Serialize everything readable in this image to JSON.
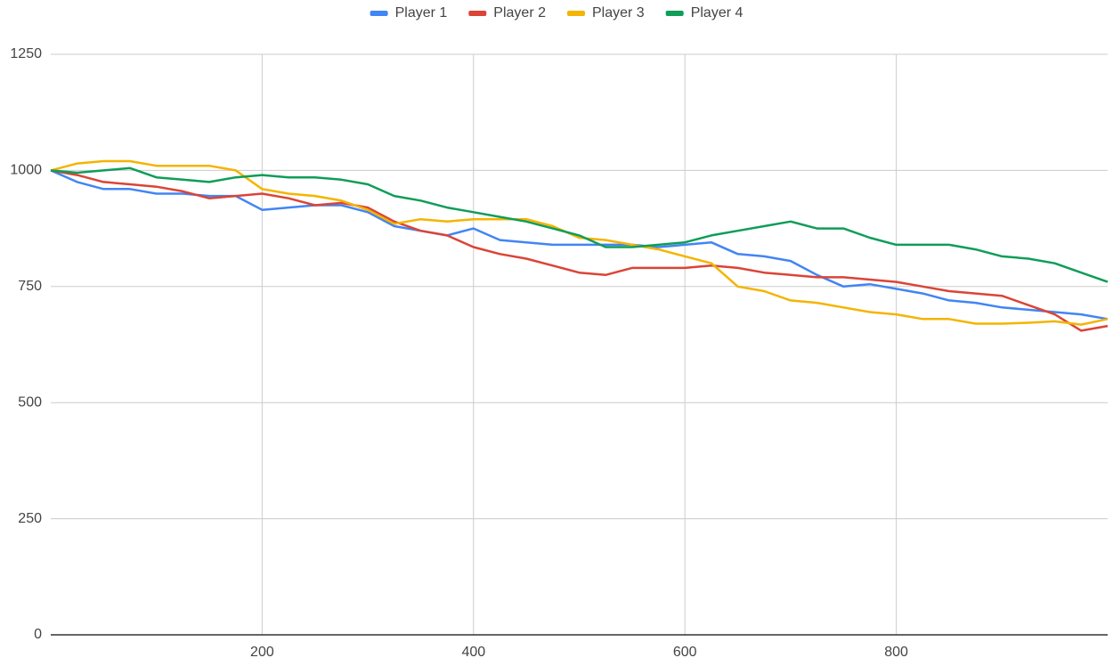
{
  "chart_data": {
    "type": "line",
    "x": [
      0,
      25,
      50,
      75,
      100,
      125,
      150,
      175,
      200,
      225,
      250,
      275,
      300,
      325,
      350,
      375,
      400,
      425,
      450,
      475,
      500,
      525,
      550,
      575,
      600,
      625,
      650,
      675,
      700,
      725,
      750,
      775,
      800,
      825,
      850,
      875,
      900,
      925,
      950,
      975,
      1000
    ],
    "series": [
      {
        "name": "Player 1",
        "color": "#4285f4",
        "values": [
          1000,
          975,
          960,
          960,
          950,
          950,
          945,
          945,
          915,
          920,
          925,
          925,
          910,
          880,
          870,
          860,
          875,
          850,
          845,
          840,
          840,
          840,
          840,
          835,
          840,
          845,
          820,
          815,
          805,
          775,
          750,
          755,
          745,
          735,
          720,
          715,
          705,
          700,
          695,
          690,
          680
        ]
      },
      {
        "name": "Player 2",
        "color": "#db4437",
        "values": [
          1000,
          990,
          975,
          970,
          965,
          955,
          940,
          945,
          950,
          940,
          925,
          930,
          920,
          890,
          870,
          860,
          835,
          820,
          810,
          795,
          780,
          775,
          790,
          790,
          790,
          795,
          790,
          780,
          775,
          770,
          770,
          765,
          760,
          750,
          740,
          735,
          730,
          710,
          690,
          655,
          665
        ]
      },
      {
        "name": "Player 3",
        "color": "#f4b400",
        "values": [
          1000,
          1015,
          1020,
          1020,
          1010,
          1010,
          1010,
          1000,
          960,
          950,
          945,
          935,
          915,
          885,
          895,
          890,
          895,
          895,
          895,
          880,
          855,
          850,
          840,
          830,
          815,
          800,
          750,
          740,
          720,
          715,
          705,
          695,
          690,
          680,
          680,
          670,
          670,
          672,
          675,
          668,
          680
        ]
      },
      {
        "name": "Player 4",
        "color": "#0f9d58",
        "values": [
          1000,
          995,
          1000,
          1005,
          985,
          980,
          975,
          985,
          990,
          985,
          985,
          980,
          970,
          945,
          935,
          920,
          910,
          900,
          890,
          875,
          860,
          835,
          835,
          840,
          845,
          860,
          870,
          880,
          890,
          875,
          875,
          855,
          840,
          840,
          840,
          830,
          815,
          810,
          800,
          780,
          760
        ]
      }
    ],
    "xlim": [
      0,
      1000
    ],
    "xticks": [
      200,
      400,
      600,
      800
    ],
    "ylim": [
      0,
      1250
    ],
    "yticks": [
      0,
      250,
      500,
      750,
      1000,
      1250
    ],
    "grid": true,
    "legend": "top"
  }
}
